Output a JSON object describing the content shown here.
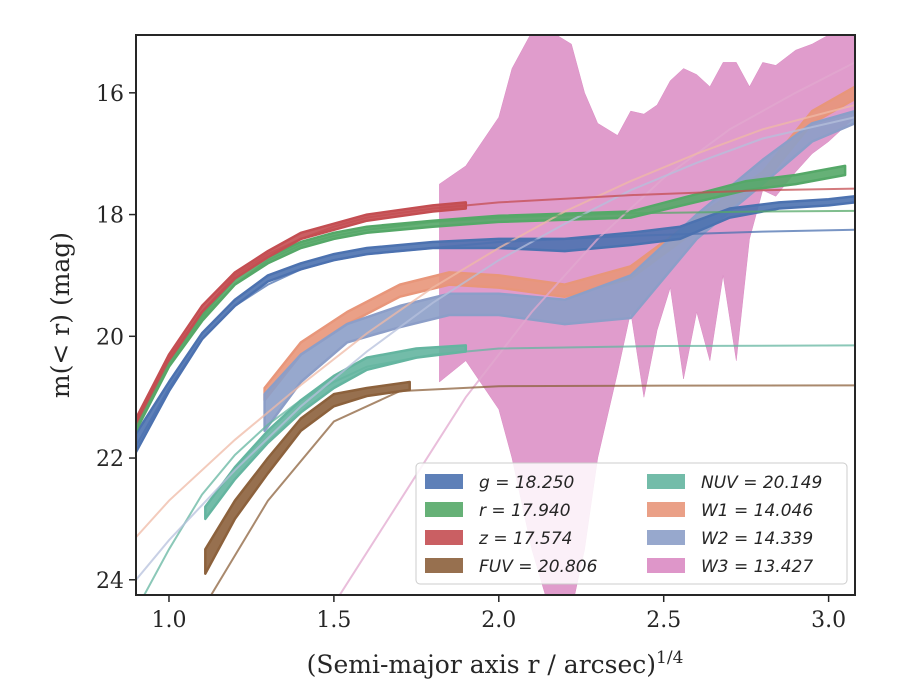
{
  "chart_data": {
    "type": "line",
    "xlabel": "(Semi-major axis r / arcsec)",
    "xlabel_sup": "1/4",
    "ylabel": "m(< r) (mag)",
    "xlim": [
      0.9,
      3.08
    ],
    "ylim": [
      24.25,
      15.05
    ],
    "y_inverted": true,
    "xticks": [
      1.0,
      1.5,
      2.0,
      2.5,
      3.0
    ],
    "xtick_labels": [
      "1.0",
      "1.5",
      "2.0",
      "2.5",
      "3.0"
    ],
    "yticks": [
      16,
      18,
      20,
      22,
      24
    ],
    "ytick_labels": [
      "16",
      "18",
      "20",
      "22",
      "24"
    ],
    "grid": false,
    "legend_position": "lower-right",
    "legend_columns": 2,
    "series": [
      {
        "name": "g = 18.250",
        "var": "g",
        "value": "18.250",
        "color": "#4c72b0",
        "model_color": "#4c72b0",
        "band": [
          [
            0.9,
            21.9,
            21.6
          ],
          [
            1.0,
            20.9,
            20.75
          ],
          [
            1.1,
            20.05,
            19.95
          ],
          [
            1.2,
            19.5,
            19.4
          ],
          [
            1.3,
            19.1,
            19.0
          ],
          [
            1.4,
            18.9,
            18.8
          ],
          [
            1.5,
            18.75,
            18.65
          ],
          [
            1.6,
            18.65,
            18.55
          ],
          [
            1.8,
            18.55,
            18.45
          ],
          [
            2.0,
            18.55,
            18.4
          ],
          [
            2.2,
            18.6,
            18.4
          ],
          [
            2.4,
            18.5,
            18.3
          ],
          [
            2.55,
            18.4,
            18.2
          ],
          [
            2.7,
            18.05,
            17.9
          ],
          [
            2.85,
            17.9,
            17.8
          ],
          [
            3.0,
            17.85,
            17.75
          ],
          [
            3.08,
            17.8,
            17.7
          ]
        ],
        "model": [
          [
            0.9,
            21.8
          ],
          [
            1.0,
            20.85
          ],
          [
            1.1,
            20.05
          ],
          [
            1.2,
            19.5
          ],
          [
            1.3,
            19.15
          ],
          [
            1.4,
            18.9
          ],
          [
            1.5,
            18.75
          ],
          [
            1.6,
            18.65
          ],
          [
            1.8,
            18.55
          ],
          [
            2.0,
            18.45
          ],
          [
            2.4,
            18.35
          ],
          [
            2.8,
            18.28
          ],
          [
            3.08,
            18.25
          ]
        ]
      },
      {
        "name": "r = 17.940",
        "var": "r",
        "value": "17.940",
        "color": "#55a868",
        "model_color": "#55a868",
        "band": [
          [
            0.9,
            21.55,
            21.4
          ],
          [
            1.0,
            20.5,
            20.4
          ],
          [
            1.1,
            19.75,
            19.65
          ],
          [
            1.2,
            19.15,
            19.05
          ],
          [
            1.3,
            18.8,
            18.7
          ],
          [
            1.4,
            18.55,
            18.45
          ],
          [
            1.5,
            18.4,
            18.3
          ],
          [
            1.6,
            18.3,
            18.2
          ],
          [
            1.8,
            18.2,
            18.1
          ],
          [
            2.0,
            18.12,
            18.02
          ],
          [
            2.4,
            18.05,
            17.95
          ],
          [
            2.75,
            17.6,
            17.45
          ],
          [
            2.9,
            17.5,
            17.35
          ],
          [
            3.0,
            17.4,
            17.25
          ],
          [
            3.05,
            17.35,
            17.2
          ]
        ],
        "model": [
          [
            0.9,
            21.5
          ],
          [
            1.0,
            20.45
          ],
          [
            1.1,
            19.7
          ],
          [
            1.2,
            19.15
          ],
          [
            1.3,
            18.75
          ],
          [
            1.4,
            18.5
          ],
          [
            1.5,
            18.35
          ],
          [
            1.6,
            18.25
          ],
          [
            1.8,
            18.12
          ],
          [
            2.0,
            18.05
          ],
          [
            2.4,
            17.98
          ],
          [
            2.8,
            17.95
          ],
          [
            3.08,
            17.94
          ]
        ]
      },
      {
        "name": "z = 17.574",
        "var": "z",
        "value": "17.574",
        "color": "#c44e52",
        "model_color": "#c44e52",
        "band": [
          [
            0.9,
            21.45,
            21.35
          ],
          [
            1.0,
            20.4,
            20.3
          ],
          [
            1.1,
            19.6,
            19.5
          ],
          [
            1.2,
            19.05,
            18.95
          ],
          [
            1.3,
            18.7,
            18.6
          ],
          [
            1.4,
            18.4,
            18.3
          ],
          [
            1.5,
            18.25,
            18.15
          ],
          [
            1.6,
            18.1,
            18.0
          ],
          [
            1.8,
            17.95,
            17.85
          ],
          [
            1.9,
            17.9,
            17.8
          ]
        ],
        "model": [
          [
            0.9,
            21.4
          ],
          [
            1.0,
            20.35
          ],
          [
            1.1,
            19.6
          ],
          [
            1.2,
            19.0
          ],
          [
            1.3,
            18.65
          ],
          [
            1.4,
            18.4
          ],
          [
            1.5,
            18.2
          ],
          [
            1.6,
            18.05
          ],
          [
            1.8,
            17.9
          ],
          [
            2.0,
            17.8
          ],
          [
            2.4,
            17.68
          ],
          [
            2.8,
            17.6
          ],
          [
            3.08,
            17.574
          ]
        ]
      },
      {
        "name": "FUV = 20.806",
        "var": "FUV",
        "value": "20.806",
        "color": "#8c613c",
        "model_color": "#8c613c",
        "band": [
          [
            1.11,
            23.9,
            23.5
          ],
          [
            1.2,
            23.0,
            22.7
          ],
          [
            1.3,
            22.25,
            22.0
          ],
          [
            1.4,
            21.55,
            21.35
          ],
          [
            1.5,
            21.15,
            20.95
          ],
          [
            1.6,
            20.98,
            20.85
          ],
          [
            1.73,
            20.88,
            20.75
          ]
        ],
        "model": [
          [
            0.9,
            26.5
          ],
          [
            1.1,
            24.5
          ],
          [
            1.3,
            22.7
          ],
          [
            1.5,
            21.4
          ],
          [
            1.7,
            20.9
          ],
          [
            2.0,
            20.82
          ],
          [
            2.5,
            20.81
          ],
          [
            3.08,
            20.806
          ]
        ]
      },
      {
        "name": "NUV = 20.149",
        "var": "NUV",
        "value": "20.149",
        "color": "#64b5a0",
        "model_color": "#64b5a0",
        "band": [
          [
            1.11,
            23.0,
            22.8
          ],
          [
            1.2,
            22.35,
            22.15
          ],
          [
            1.3,
            21.75,
            21.55
          ],
          [
            1.4,
            21.25,
            21.05
          ],
          [
            1.5,
            20.85,
            20.65
          ],
          [
            1.6,
            20.55,
            20.35
          ],
          [
            1.75,
            20.35,
            20.2
          ],
          [
            1.9,
            20.25,
            20.15
          ]
        ],
        "model": [
          [
            0.9,
            24.5
          ],
          [
            1.0,
            23.5
          ],
          [
            1.1,
            22.6
          ],
          [
            1.2,
            21.95
          ],
          [
            1.3,
            21.45
          ],
          [
            1.4,
            21.05
          ],
          [
            1.5,
            20.75
          ],
          [
            1.6,
            20.5
          ],
          [
            1.8,
            20.3
          ],
          [
            2.0,
            20.2
          ],
          [
            2.5,
            20.16
          ],
          [
            3.08,
            20.149
          ]
        ]
      },
      {
        "name": "W1 = 14.046",
        "var": "W1",
        "value": "14.046",
        "color": "#e8967a",
        "model_color": "#efb9a6",
        "band": [
          [
            1.29,
            21.05,
            20.85
          ],
          [
            1.4,
            20.3,
            20.1
          ],
          [
            1.54,
            19.8,
            19.6
          ],
          [
            1.7,
            19.35,
            19.15
          ],
          [
            1.85,
            19.15,
            18.95
          ],
          [
            2.0,
            19.2,
            19.0
          ],
          [
            2.2,
            19.35,
            19.15
          ],
          [
            2.4,
            19.05,
            18.85
          ],
          [
            2.6,
            18.25,
            18.05
          ],
          [
            2.8,
            17.5,
            17.3
          ],
          [
            2.95,
            16.5,
            16.3
          ],
          [
            3.08,
            16.1,
            15.9
          ]
        ],
        "model": [
          [
            0.9,
            23.3
          ],
          [
            1.0,
            22.7
          ],
          [
            1.2,
            21.7
          ],
          [
            1.4,
            20.8
          ],
          [
            1.6,
            19.95
          ],
          [
            1.8,
            19.2
          ],
          [
            2.0,
            18.55
          ],
          [
            2.2,
            17.95
          ],
          [
            2.4,
            17.45
          ],
          [
            2.6,
            17.0
          ],
          [
            2.8,
            16.6
          ],
          [
            3.08,
            16.2
          ]
        ]
      },
      {
        "name": "W2 = 14.339",
        "var": "W2",
        "value": "14.339",
        "color": "#8c9ec8",
        "model_color": "#b6c0dc",
        "band": [
          [
            1.29,
            21.55,
            20.95
          ],
          [
            1.4,
            20.75,
            20.3
          ],
          [
            1.54,
            20.1,
            19.8
          ],
          [
            1.7,
            19.85,
            19.5
          ],
          [
            1.85,
            19.65,
            19.3
          ],
          [
            2.0,
            19.65,
            19.3
          ],
          [
            2.2,
            19.8,
            19.4
          ],
          [
            2.4,
            19.7,
            19.0
          ],
          [
            2.6,
            18.4,
            18.0
          ],
          [
            2.8,
            17.5,
            17.1
          ],
          [
            2.95,
            16.8,
            16.5
          ],
          [
            3.08,
            16.5,
            16.3
          ]
        ],
        "model": [
          [
            0.9,
            24.0
          ],
          [
            1.0,
            23.35
          ],
          [
            1.2,
            22.2
          ],
          [
            1.4,
            21.15
          ],
          [
            1.6,
            20.25
          ],
          [
            1.8,
            19.45
          ],
          [
            2.0,
            18.75
          ],
          [
            2.2,
            18.15
          ],
          [
            2.4,
            17.6
          ],
          [
            2.6,
            17.15
          ],
          [
            2.8,
            16.75
          ],
          [
            3.08,
            16.4
          ]
        ]
      },
      {
        "name": "W3 = 13.427",
        "var": "W3",
        "value": "13.427",
        "color": "#da8bc3",
        "model_color": "#e2a8cf",
        "band": [
          [
            1.82,
            20.75,
            17.5
          ],
          [
            1.9,
            20.4,
            17.2
          ],
          [
            2.0,
            21.2,
            16.4
          ],
          [
            2.04,
            22.0,
            15.6
          ],
          [
            2.1,
            23.5,
            15.0
          ],
          [
            2.16,
            24.6,
            15.0
          ],
          [
            2.22,
            24.5,
            15.2
          ],
          [
            2.26,
            23.5,
            16.0
          ],
          [
            2.3,
            22.0,
            16.5
          ],
          [
            2.36,
            20.6,
            16.7
          ],
          [
            2.4,
            19.6,
            16.3
          ],
          [
            2.44,
            21.0,
            16.35
          ],
          [
            2.48,
            19.9,
            16.2
          ],
          [
            2.52,
            19.2,
            15.8
          ],
          [
            2.56,
            20.7,
            15.6
          ],
          [
            2.6,
            19.6,
            15.7
          ],
          [
            2.64,
            20.4,
            15.9
          ],
          [
            2.68,
            19.0,
            15.5
          ],
          [
            2.72,
            20.4,
            15.5
          ],
          [
            2.76,
            18.4,
            15.9
          ],
          [
            2.8,
            17.6,
            15.5
          ],
          [
            2.84,
            17.7,
            15.55
          ],
          [
            2.9,
            17.3,
            15.3
          ],
          [
            2.95,
            17.0,
            15.2
          ],
          [
            3.0,
            16.8,
            15.05
          ],
          [
            3.08,
            16.4,
            15.0
          ]
        ],
        "model": [
          [
            1.29,
            26.0
          ],
          [
            1.5,
            24.4
          ],
          [
            1.7,
            22.7
          ],
          [
            1.9,
            21.0
          ],
          [
            2.1,
            19.6
          ],
          [
            2.3,
            18.4
          ],
          [
            2.5,
            17.4
          ],
          [
            2.7,
            16.6
          ],
          [
            2.9,
            16.0
          ],
          [
            3.08,
            15.5
          ]
        ]
      }
    ]
  }
}
